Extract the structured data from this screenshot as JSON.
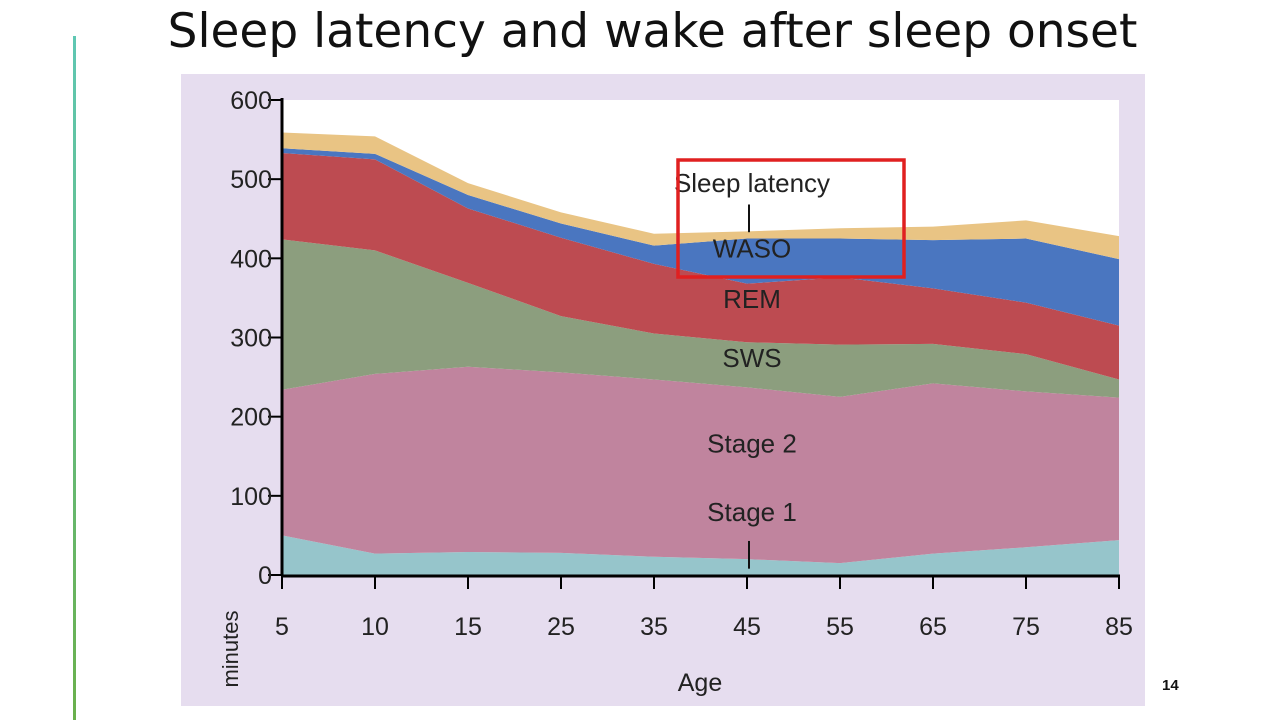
{
  "slide": {
    "title": "Sleep latency and wake after sleep onset",
    "page_number": "14",
    "accent_color": "#6ab04c",
    "highlight_color": "#e02020"
  },
  "chart_data": {
    "type": "area",
    "stacked": true,
    "xlabel": "Age",
    "ylabel": "minutes",
    "x": [
      "5",
      "10",
      "15",
      "25",
      "35",
      "45",
      "55",
      "65",
      "75",
      "85"
    ],
    "ylim": [
      0,
      600
    ],
    "yticks": [
      0,
      100,
      200,
      300,
      400,
      500,
      600
    ],
    "grid": false,
    "series": [
      {
        "name": "Stage 1",
        "color": "#96c5cb",
        "values": [
          50,
          27,
          29,
          28,
          23,
          20,
          15,
          27,
          35,
          44
        ]
      },
      {
        "name": "Stage 2",
        "color": "#c0849e",
        "values": [
          184,
          227,
          234,
          228,
          224,
          217,
          210,
          215,
          197,
          180
        ]
      },
      {
        "name": "SWS",
        "color": "#8c9e7e",
        "values": [
          190,
          156,
          106,
          71,
          58,
          57,
          66,
          50,
          47,
          23
        ]
      },
      {
        "name": "REM",
        "color": "#bd4b51",
        "values": [
          109,
          115,
          94,
          99,
          88,
          74,
          85,
          70,
          65,
          68
        ]
      },
      {
        "name": "WASO",
        "color": "#4a76c0",
        "values": [
          6,
          7,
          17,
          18,
          23,
          57,
          49,
          61,
          81,
          84
        ]
      },
      {
        "name": "Sleep latency",
        "color": "#e9c484",
        "values": [
          20,
          22,
          15,
          14,
          15,
          9,
          13,
          17,
          23,
          29
        ]
      }
    ],
    "highlighted_series": "WASO"
  }
}
